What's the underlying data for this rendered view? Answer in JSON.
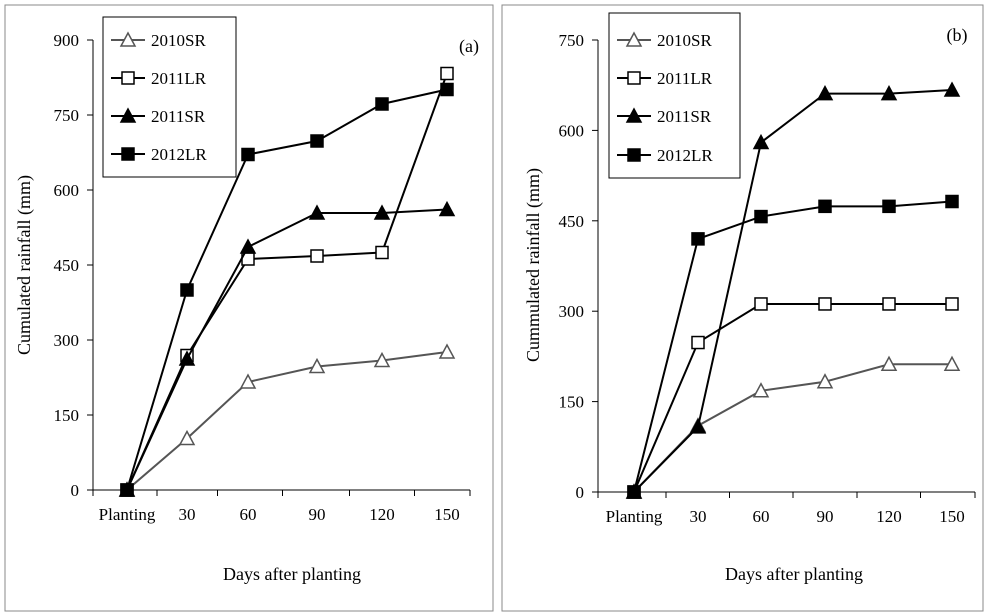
{
  "chart_data": [
    {
      "type": "line",
      "panel_label": "(a)",
      "xlabel": "Days after planting",
      "ylabel": "Cumulated rainfall (mm)",
      "categories": [
        "Planting",
        "30",
        "60",
        "90",
        "120",
        "150"
      ],
      "ylim": [
        0,
        900
      ],
      "yticks": [
        0,
        150,
        300,
        450,
        600,
        750,
        900
      ],
      "legend_position": "top-left",
      "grid": false,
      "series": [
        {
          "name": "2010SR",
          "marker": "triangle-open",
          "color": "#555555",
          "values": [
            0,
            103,
            216,
            247,
            259,
            276
          ]
        },
        {
          "name": "2011LR",
          "marker": "square-open",
          "color": "#000000",
          "values": [
            0,
            269,
            462,
            468,
            475,
            833
          ]
        },
        {
          "name": "2011SR",
          "marker": "triangle-filled",
          "color": "#000000",
          "values": [
            0,
            262,
            486,
            554,
            554,
            561
          ]
        },
        {
          "name": "2012LR",
          "marker": "square-filled",
          "color": "#000000",
          "values": [
            0,
            400,
            671,
            698,
            772,
            801
          ]
        }
      ]
    },
    {
      "type": "line",
      "panel_label": "(b)",
      "xlabel": "Days after planting",
      "ylabel": "Cummulated rainfall (mm)",
      "categories": [
        "Planting",
        "30",
        "60",
        "90",
        "120",
        "150"
      ],
      "ylim": [
        0,
        750
      ],
      "yticks": [
        0,
        150,
        300,
        450,
        600,
        750
      ],
      "legend_position": "top-left",
      "grid": false,
      "series": [
        {
          "name": "2010SR",
          "marker": "triangle-open",
          "color": "#555555",
          "values": [
            0,
            110,
            168,
            183,
            212,
            212
          ]
        },
        {
          "name": "2011LR",
          "marker": "square-open",
          "color": "#000000",
          "values": [
            0,
            248,
            312,
            312,
            312,
            312
          ]
        },
        {
          "name": "2011SR",
          "marker": "triangle-filled",
          "color": "#000000",
          "values": [
            0,
            108,
            580,
            661,
            661,
            667
          ]
        },
        {
          "name": "2012LR",
          "marker": "square-filled",
          "color": "#000000",
          "values": [
            0,
            420,
            457,
            474,
            474,
            482
          ]
        }
      ]
    }
  ]
}
